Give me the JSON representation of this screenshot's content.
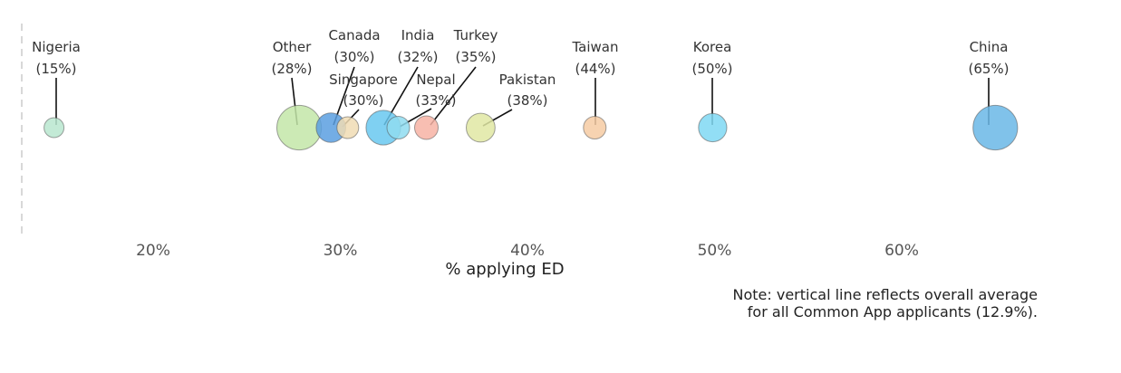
{
  "chart_data": {
    "type": "scatter",
    "xlabel": "% applying ED",
    "xlim": [
      12,
      72
    ],
    "x_ticks": [
      {
        "value": 20,
        "label": "20%"
      },
      {
        "value": 30,
        "label": "30%"
      },
      {
        "value": 40,
        "label": "40%"
      },
      {
        "value": 50,
        "label": "50%"
      },
      {
        "value": 60,
        "label": "60%"
      }
    ],
    "reference_line": {
      "value": 12.9
    },
    "note_lines": [
      "Note: vertical line reflects overall average",
      "for all Common App applicants (12.9%)."
    ],
    "points": [
      {
        "name": "Nigeria",
        "pct": "(15%)",
        "x": 14.7,
        "size": 1,
        "color": "#b8e6cf"
      },
      {
        "name": "Other",
        "pct": "(28%)",
        "x": 27.8,
        "size": 5,
        "color": "#c3e6a8"
      },
      {
        "name": "Canada",
        "pct": "(30%)",
        "x": 29.5,
        "size": 2.2,
        "color": "#5a9fe0"
      },
      {
        "name": "Singapore",
        "pct": "(30%)",
        "x": 30.4,
        "size": 1.2,
        "color": "#f0dcb4"
      },
      {
        "name": "India",
        "pct": "(32%)",
        "x": 32.3,
        "size": 3,
        "color": "#69c8f0"
      },
      {
        "name": "Nepal",
        "pct": "(33%)",
        "x": 33.1,
        "size": 1.3,
        "color": "#8fdcf0"
      },
      {
        "name": "Turkey",
        "pct": "(35%)",
        "x": 34.6,
        "size": 1.4,
        "color": "#f7b3a5"
      },
      {
        "name": "Pakistan",
        "pct": "(38%)",
        "x": 37.5,
        "size": 2.1,
        "color": "#e1e8a3"
      },
      {
        "name": "Taiwan",
        "pct": "(44%)",
        "x": 43.6,
        "size": 1.3,
        "color": "#f6cba3"
      },
      {
        "name": "Korea",
        "pct": "(50%)",
        "x": 49.9,
        "size": 2,
        "color": "#7fd8f3"
      },
      {
        "name": "China",
        "pct": "(65%)",
        "x": 65.0,
        "size": 5,
        "color": "#6ab7e6"
      }
    ]
  }
}
